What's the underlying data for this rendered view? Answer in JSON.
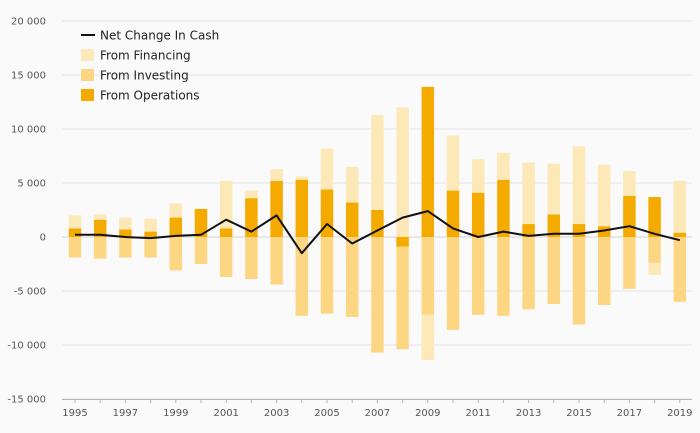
{
  "chart_data": {
    "type": "bar",
    "stacked": true,
    "x": [
      "1995",
      "1996",
      "1997",
      "1998",
      "1999",
      "2000",
      "2001",
      "2002",
      "2003",
      "2004",
      "2005",
      "2006",
      "2007",
      "2008",
      "2009",
      "2010",
      "2011",
      "2012",
      "2013",
      "2014",
      "2015",
      "2016",
      "2017",
      "2018",
      "2019"
    ],
    "x_tick_labels": [
      "1995",
      "1997",
      "1999",
      "2001",
      "2003",
      "2005",
      "2007",
      "2009",
      "2011",
      "2013",
      "2015",
      "2017",
      "2019"
    ],
    "ylim": [
      -15000,
      20000
    ],
    "y_ticks": [
      20000,
      15000,
      10000,
      5000,
      0,
      -5000,
      -10000,
      -15000
    ],
    "y_tick_labels": [
      "20 000",
      "15 000",
      "10 000",
      "5 000",
      "0",
      "-5 000",
      "-10 000",
      "-15 000"
    ],
    "grid": "horizontal",
    "legend_position": "top-left",
    "series": [
      {
        "name": "From Operations",
        "kind": "bar",
        "color": "#f5aa00",
        "values": [
          800,
          1600,
          700,
          500,
          1800,
          2600,
          800,
          3600,
          5200,
          5300,
          4400,
          3200,
          2500,
          -900,
          13900,
          4300,
          4100,
          5300,
          1200,
          2100,
          1200,
          1000,
          3800,
          3700,
          400
        ]
      },
      {
        "name": "From Investing",
        "kind": "bar",
        "color": "#fdd684",
        "values": [
          -1900,
          -2000,
          -1900,
          -1900,
          -3100,
          -2500,
          -3700,
          -3900,
          -4400,
          -7300,
          -7100,
          -7400,
          -10700,
          -9500,
          -7200,
          -8600,
          -7200,
          -7300,
          -6700,
          -6200,
          -8100,
          -6300,
          -4800,
          -2400,
          -6000
        ]
      },
      {
        "name": "From Financing",
        "kind": "bar",
        "color": "#fde8b8",
        "values": [
          1200,
          500,
          1100,
          1200,
          1300,
          0,
          4400,
          700,
          1100,
          300,
          3800,
          3300,
          8800,
          12000,
          -4200,
          5100,
          3100,
          2500,
          5700,
          4700,
          7200,
          5700,
          2300,
          -1100,
          4800
        ]
      },
      {
        "name": "Net Change In Cash",
        "kind": "line",
        "color": "#111111",
        "values": [
          200,
          200,
          0,
          -100,
          100,
          200,
          1600,
          500,
          2000,
          -1500,
          1200,
          -600,
          600,
          1800,
          2400,
          800,
          0,
          500,
          100,
          300,
          300,
          600,
          1000,
          300,
          -300
        ]
      }
    ]
  }
}
